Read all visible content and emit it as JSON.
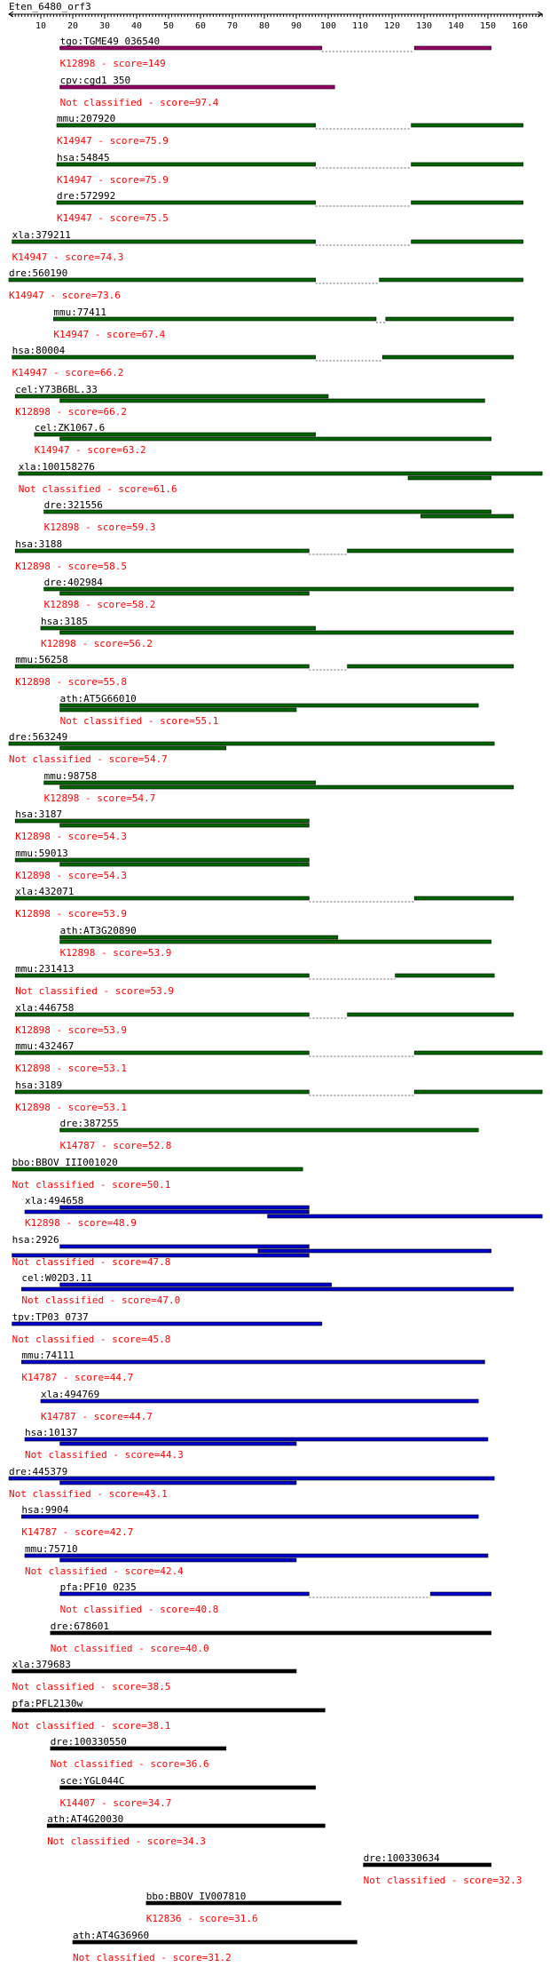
{
  "query": "Eten_6480_orf3",
  "ruler": {
    "ticks": [
      10,
      20,
      30,
      40,
      50,
      60,
      70,
      80,
      90,
      100,
      110,
      120,
      130,
      140,
      150,
      160
    ],
    "length": 167
  },
  "colors": {
    "purple": "#990066",
    "green": "#006600",
    "blue": "#0000cc",
    "black": "#000000",
    "dotted": "#666666",
    "label": "#ff0000"
  },
  "hits": [
    {
      "name": "tgo:TGME49_036540",
      "label": "K12898 - score=149",
      "color": "purple",
      "a": 16,
      "b": 151,
      "segs": [
        [
          16,
          98
        ],
        [
          127,
          151
        ]
      ]
    },
    {
      "name": "cpv:cgd1_350",
      "label": "Not classified - score=97.4",
      "color": "purple",
      "a": 16,
      "b": 102,
      "segs": [
        [
          16,
          102
        ]
      ]
    },
    {
      "name": "mmu:207920",
      "label": "K14947 - score=75.9",
      "color": "green",
      "a": 15,
      "b": 161,
      "segs": [
        [
          15,
          96
        ],
        [
          126,
          161
        ]
      ]
    },
    {
      "name": "hsa:54845",
      "label": "K14947 - score=75.9",
      "color": "green",
      "a": 15,
      "b": 161,
      "segs": [
        [
          15,
          96
        ],
        [
          126,
          161
        ]
      ]
    },
    {
      "name": "dre:572992",
      "label": "K14947 - score=75.5",
      "color": "green",
      "a": 15,
      "b": 161,
      "segs": [
        [
          15,
          96
        ],
        [
          126,
          161
        ]
      ]
    },
    {
      "name": "xla:379211",
      "label": "K14947 - score=74.3",
      "color": "green",
      "a": 1,
      "b": 161,
      "segs": [
        [
          1,
          96
        ],
        [
          126,
          161
        ]
      ]
    },
    {
      "name": "dre:560190",
      "label": "K14947 - score=73.6",
      "color": "green",
      "a": 0,
      "b": 161,
      "segs": [
        [
          0,
          96
        ],
        [
          116,
          161
        ]
      ]
    },
    {
      "name": "mmu:77411",
      "label": "K14947 - score=67.4",
      "color": "green",
      "a": 14,
      "b": 158,
      "segs": [
        [
          14,
          115
        ],
        [
          118,
          158
        ]
      ]
    },
    {
      "name": "hsa:80004",
      "label": "K14947 - score=66.2",
      "color": "green",
      "a": 1,
      "b": 158,
      "segs": [
        [
          1,
          96
        ],
        [
          117,
          158
        ]
      ]
    },
    {
      "name": "cel:Y73B6BL.33",
      "label": "K12898 - score=66.2",
      "color": "green",
      "a": 2,
      "b": 149,
      "segs": [
        [
          2,
          100
        ],
        [
          16,
          149
        ]
      ]
    },
    {
      "name": "cel:ZK1067.6",
      "label": "K14947 - score=63.2",
      "color": "green",
      "a": 8,
      "b": 151,
      "segs": [
        [
          8,
          96
        ],
        [
          16,
          151
        ]
      ]
    },
    {
      "name": "xla:100158276",
      "label": "Not classified - score=61.6",
      "color": "green",
      "a": 3,
      "b": 167,
      "segs": [
        [
          3,
          167
        ],
        [
          125,
          151
        ]
      ]
    },
    {
      "name": "dre:321556",
      "label": "K12898 - score=59.3",
      "color": "green",
      "a": 11,
      "b": 158,
      "segs": [
        [
          11,
          151
        ],
        [
          129,
          158
        ]
      ]
    },
    {
      "name": "hsa:3188",
      "label": "K12898 - score=58.5",
      "color": "green",
      "a": 2,
      "b": 158,
      "segs": [
        [
          2,
          94
        ],
        [
          106,
          158
        ]
      ]
    },
    {
      "name": "dre:402984",
      "label": "K12898 - score=58.2",
      "color": "green",
      "a": 11,
      "b": 158,
      "segs": [
        [
          11,
          158
        ],
        [
          16,
          94
        ]
      ]
    },
    {
      "name": "hsa:3185",
      "label": "K12898 - score=56.2",
      "color": "green",
      "a": 10,
      "b": 158,
      "segs": [
        [
          10,
          96
        ],
        [
          16,
          158
        ]
      ]
    },
    {
      "name": "mmu:56258",
      "label": "K12898 - score=55.8",
      "color": "green",
      "a": 2,
      "b": 158,
      "segs": [
        [
          2,
          94
        ],
        [
          106,
          158
        ]
      ]
    },
    {
      "name": "ath:AT5G66010",
      "label": "Not classified - score=55.1",
      "color": "green",
      "a": 16,
      "b": 147,
      "segs": [
        [
          16,
          147
        ],
        [
          16,
          90
        ]
      ]
    },
    {
      "name": "dre:563249",
      "label": "Not classified - score=54.7",
      "color": "green",
      "a": 0,
      "b": 152,
      "segs": [
        [
          0,
          152
        ],
        [
          16,
          68
        ]
      ]
    },
    {
      "name": "mmu:98758",
      "label": "K12898 - score=54.7",
      "color": "green",
      "a": 11,
      "b": 158,
      "segs": [
        [
          11,
          96
        ],
        [
          16,
          158
        ]
      ]
    },
    {
      "name": "hsa:3187",
      "label": "K12898 - score=54.3",
      "color": "green",
      "a": 2,
      "b": 94,
      "segs": [
        [
          2,
          94
        ],
        [
          16,
          94
        ]
      ]
    },
    {
      "name": "mmu:59013",
      "label": "K12898 - score=54.3",
      "color": "green",
      "a": 2,
      "b": 94,
      "segs": [
        [
          2,
          94
        ],
        [
          16,
          94
        ]
      ]
    },
    {
      "name": "xla:432071",
      "label": "K12898 - score=53.9",
      "color": "green",
      "a": 2,
      "b": 158,
      "segs": [
        [
          2,
          94
        ],
        [
          127,
          158
        ]
      ]
    },
    {
      "name": "ath:AT3G20890",
      "label": "K12898 - score=53.9",
      "color": "green",
      "a": 16,
      "b": 151,
      "segs": [
        [
          16,
          103
        ],
        [
          16,
          151
        ]
      ]
    },
    {
      "name": "mmu:231413",
      "label": "Not classified - score=53.9",
      "color": "green",
      "a": 2,
      "b": 152,
      "segs": [
        [
          2,
          94
        ],
        [
          121,
          152
        ]
      ]
    },
    {
      "name": "xla:446758",
      "label": "K12898 - score=53.9",
      "color": "green",
      "a": 2,
      "b": 158,
      "segs": [
        [
          2,
          94
        ],
        [
          106,
          158
        ]
      ]
    },
    {
      "name": "mmu:432467",
      "label": "K12898 - score=53.1",
      "color": "green",
      "a": 2,
      "b": 167,
      "segs": [
        [
          2,
          94
        ],
        [
          127,
          167
        ]
      ]
    },
    {
      "name": "hsa:3189",
      "label": "K12898 - score=53.1",
      "color": "green",
      "a": 2,
      "b": 167,
      "segs": [
        [
          2,
          94
        ],
        [
          127,
          167
        ]
      ]
    },
    {
      "name": "dre:387255",
      "label": "K14787 - score=52.8",
      "color": "green",
      "a": 16,
      "b": 147,
      "segs": [
        [
          16,
          147
        ]
      ]
    },
    {
      "name": "bbo:BBOV_III001020",
      "label": "Not classified - score=50.1",
      "color": "green",
      "a": 1,
      "b": 92,
      "segs": [
        [
          1,
          92
        ]
      ]
    },
    {
      "name": "xla:494658",
      "label": "K12898 - score=48.9",
      "color": "blue",
      "a": 5,
      "b": 167,
      "segs": [
        [
          16,
          94
        ],
        [
          5,
          94
        ],
        [
          81,
          167
        ]
      ]
    },
    {
      "name": "hsa:2926",
      "label": "Not classified - score=47.8",
      "color": "blue",
      "a": 1,
      "b": 151,
      "segs": [
        [
          16,
          94
        ],
        [
          78,
          151
        ],
        [
          1,
          94
        ]
      ]
    },
    {
      "name": "cel:W02D3.11",
      "label": "Not classified - score=47.0",
      "color": "blue",
      "a": 4,
      "b": 158,
      "segs": [
        [
          16,
          101
        ],
        [
          4,
          158
        ]
      ]
    },
    {
      "name": "tpv:TP03_0737",
      "label": "Not classified - score=45.8",
      "color": "blue",
      "a": 1,
      "b": 98,
      "segs": [
        [
          1,
          98
        ]
      ]
    },
    {
      "name": "mmu:74111",
      "label": "K14787 - score=44.7",
      "color": "blue",
      "a": 4,
      "b": 149,
      "segs": [
        [
          4,
          149
        ]
      ]
    },
    {
      "name": "xla:494769",
      "label": "K14787 - score=44.7",
      "color": "blue",
      "a": 10,
      "b": 147,
      "segs": [
        [
          10,
          147
        ]
      ]
    },
    {
      "name": "hsa:10137",
      "label": "Not classified - score=44.3",
      "color": "blue",
      "a": 5,
      "b": 150,
      "segs": [
        [
          5,
          150
        ],
        [
          16,
          90
        ]
      ]
    },
    {
      "name": "dre:445379",
      "label": "Not classified - score=43.1",
      "color": "blue",
      "a": 0,
      "b": 152,
      "segs": [
        [
          0,
          152
        ],
        [
          16,
          90
        ]
      ]
    },
    {
      "name": "hsa:9904",
      "label": "K14787 - score=42.7",
      "color": "blue",
      "a": 4,
      "b": 147,
      "segs": [
        [
          4,
          147
        ]
      ]
    },
    {
      "name": "mmu:75710",
      "label": "Not classified - score=42.4",
      "color": "blue",
      "a": 5,
      "b": 150,
      "segs": [
        [
          5,
          150
        ],
        [
          16,
          90
        ]
      ]
    },
    {
      "name": "pfa:PF10_0235",
      "label": "Not classified - score=40.8",
      "color": "blue",
      "a": 16,
      "b": 151,
      "segs": [
        [
          16,
          94
        ],
        [
          132,
          151
        ]
      ]
    },
    {
      "name": "dre:678601",
      "label": "Not classified - score=40.0",
      "color": "black",
      "a": 13,
      "b": 151,
      "segs": [
        [
          13,
          151
        ]
      ]
    },
    {
      "name": "xla:379683",
      "label": "Not classified - score=38.5",
      "color": "black",
      "a": 1,
      "b": 90,
      "segs": [
        [
          1,
          90
        ]
      ]
    },
    {
      "name": "pfa:PFL2130w",
      "label": "Not classified - score=38.1",
      "color": "black",
      "a": 1,
      "b": 99,
      "segs": [
        [
          1,
          99
        ]
      ]
    },
    {
      "name": "dre:100330550",
      "label": "Not classified - score=36.6",
      "color": "black",
      "a": 13,
      "b": 68,
      "segs": [
        [
          13,
          68
        ]
      ]
    },
    {
      "name": "sce:YGL044C",
      "label": "K14407 - score=34.7",
      "color": "black",
      "a": 16,
      "b": 96,
      "segs": [
        [
          16,
          96
        ]
      ]
    },
    {
      "name": "ath:AT4G20030",
      "label": "Not classified - score=34.3",
      "color": "black",
      "a": 12,
      "b": 99,
      "segs": [
        [
          12,
          99
        ]
      ]
    },
    {
      "name": "dre:100330634",
      "label": "Not classified - score=32.3",
      "color": "black",
      "a": 111,
      "b": 151,
      "segs": [
        [
          111,
          151
        ]
      ]
    },
    {
      "name": "bbo:BBOV_IV007810",
      "label": "K12836 - score=31.6",
      "color": "black",
      "a": 43,
      "b": 104,
      "segs": [
        [
          43,
          104
        ]
      ]
    },
    {
      "name": "ath:AT4G36960",
      "label": "Not classified - score=31.2",
      "color": "black",
      "a": 20,
      "b": 109,
      "segs": [
        [
          20,
          109
        ]
      ]
    }
  ]
}
